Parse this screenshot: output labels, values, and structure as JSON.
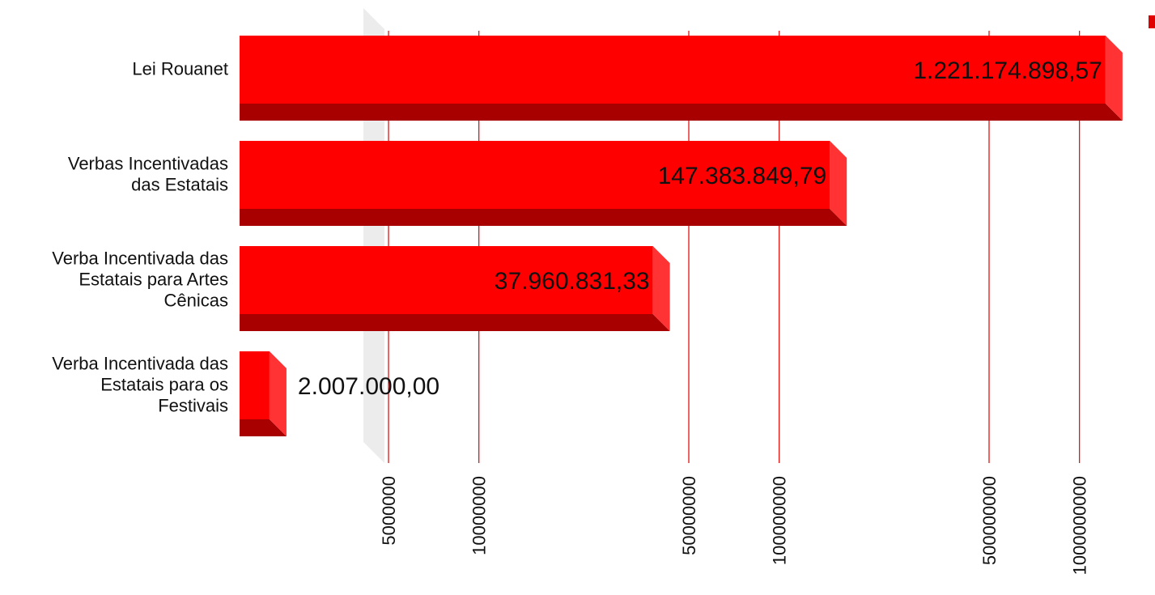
{
  "chart_data": {
    "type": "bar",
    "orientation": "horizontal",
    "style": "3d",
    "x_scale": "log",
    "xlim": [
      2000000,
      1300000000
    ],
    "categories": [
      "Lei Rouanet",
      "Verbas Incentivadas das Estatais",
      "Verba Incentivada das Estatais para Artes Cênicas",
      "Verba Incentivada das Estatais para os Festivais"
    ],
    "category_lines": [
      [
        "Lei Rouanet"
      ],
      [
        "Verbas Incentivadas",
        "das Estatais"
      ],
      [
        "Verba Incentivada das",
        "Estatais para Artes",
        "Cênicas"
      ],
      [
        "Verba Incentivada das",
        "Estatais para os",
        "Festivais"
      ]
    ],
    "values": [
      1221174898.57,
      147383849.79,
      37960831.33,
      2007000.0
    ],
    "value_labels": [
      "1.221.174.898,57",
      "147.383.849,79",
      "37.960.831,33",
      "2.007.000,00"
    ],
    "xticks": [
      5000000,
      10000000,
      50000000,
      100000000,
      500000000,
      1000000000
    ],
    "xtick_labels": [
      "5000000",
      "10000000",
      "50000000",
      "100000000",
      "500000000",
      "1000000000"
    ],
    "grid": true,
    "legend": "top-right",
    "colors": {
      "bar_front": "#ff0000",
      "bar_bottom": "#a80000",
      "bar_side": "#ff3333",
      "grid": "#e00000",
      "wall": "#ececec"
    }
  }
}
